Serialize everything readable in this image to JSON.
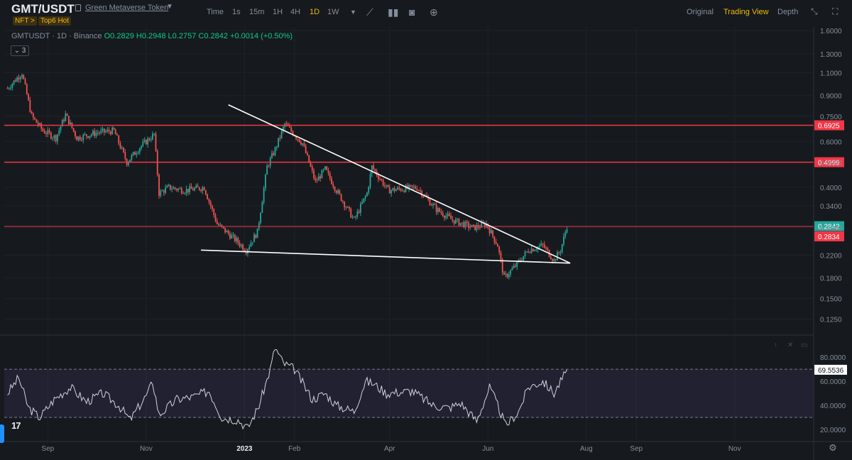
{
  "header": {
    "symbol": "GMT/USDT",
    "token_name": "Green Metaverse Token",
    "tags": [
      "NFT >",
      "Top6 Hot"
    ],
    "intervals": [
      "Time",
      "1s",
      "15m",
      "1H",
      "4H",
      "1D",
      "1W"
    ],
    "active_interval": "1D",
    "views": [
      "Original",
      "Trading View",
      "Depth"
    ],
    "active_view": "Trading View"
  },
  "legend": {
    "pair": "GMTUSDT · 1D · Binance",
    "open": "O0.2829",
    "high": "H0.2948",
    "low": "L0.2757",
    "close": "C0.2842",
    "change": "+0.0014 (+0.50%)",
    "indicator_count": "3"
  },
  "colors": {
    "background": "#161a1e",
    "up": "#26a69a",
    "down": "#ef5350",
    "horizontal_line": "#f23645",
    "trendline": "#ffffff",
    "rsi_band": "#7e57c2",
    "accent": "#f0b90b"
  },
  "chart_data": [
    {
      "type": "candlestick",
      "title": "",
      "y_scale": "log",
      "y_ticks": [
        "1.6000",
        "1.3000",
        "1.1000",
        "0.9000",
        "0.7500",
        "0.6000",
        "0.5000",
        "0.4000",
        "0.3400",
        "0.2800",
        "0.2200",
        "0.1800",
        "0.1500",
        "0.1250"
      ],
      "x_ticks": [
        "Sep",
        "Nov",
        "2023",
        "Feb",
        "Apr",
        "Jun",
        "Aug",
        "Sep",
        "Nov"
      ],
      "x_range": [
        "2022-08-05",
        "2023-12-20"
      ],
      "ylim": [
        0.11,
        1.65
      ],
      "close_path": [
        [
          "2022-08-07",
          0.96
        ],
        [
          "2022-08-16",
          1.1
        ],
        [
          "2022-08-22",
          0.75
        ],
        [
          "2022-08-29",
          0.66
        ],
        [
          "2022-09-06",
          0.62
        ],
        [
          "2022-09-12",
          0.76
        ],
        [
          "2022-09-19",
          0.62
        ],
        [
          "2022-10-02",
          0.65
        ],
        [
          "2022-10-12",
          0.66
        ],
        [
          "2022-10-20",
          0.5
        ],
        [
          "2022-10-28",
          0.57
        ],
        [
          "2022-11-06",
          0.64
        ],
        [
          "2022-11-09",
          0.38
        ],
        [
          "2022-11-15",
          0.4
        ],
        [
          "2022-11-25",
          0.39
        ],
        [
          "2022-12-07",
          0.4
        ],
        [
          "2022-12-15",
          0.29
        ],
        [
          "2022-12-27",
          0.25
        ],
        [
          "2023-01-02",
          0.23
        ],
        [
          "2023-01-09",
          0.27
        ],
        [
          "2023-01-15",
          0.48
        ],
        [
          "2023-01-20",
          0.56
        ],
        [
          "2023-01-26",
          0.7
        ],
        [
          "2023-02-06",
          0.59
        ],
        [
          "2023-02-14",
          0.42
        ],
        [
          "2023-02-20",
          0.47
        ],
        [
          "2023-02-27",
          0.39
        ],
        [
          "2023-03-10",
          0.3
        ],
        [
          "2023-03-18",
          0.38
        ],
        [
          "2023-03-21",
          0.48
        ],
        [
          "2023-03-31",
          0.39
        ],
        [
          "2023-04-18",
          0.4
        ],
        [
          "2023-04-30",
          0.33
        ],
        [
          "2023-05-10",
          0.3
        ],
        [
          "2023-05-23",
          0.28
        ],
        [
          "2023-05-31",
          0.29
        ],
        [
          "2023-06-07",
          0.24
        ],
        [
          "2023-06-11",
          0.18
        ],
        [
          "2023-06-18",
          0.2
        ],
        [
          "2023-06-26",
          0.23
        ],
        [
          "2023-07-05",
          0.24
        ],
        [
          "2023-07-12",
          0.21
        ],
        [
          "2023-07-16",
          0.23
        ],
        [
          "2023-07-20",
          0.2842
        ]
      ],
      "horizontal_lines": [
        {
          "price": 0.6925,
          "label": "0.6925"
        },
        {
          "price": 0.4999,
          "label": "0.4999"
        },
        {
          "price": 0.2834,
          "label": "0.2834"
        }
      ],
      "last_price": {
        "price": 0.2842,
        "label": "0.2842"
      },
      "trendlines": [
        {
          "from": [
            "2022-12-22",
            0.83
          ],
          "to": [
            "2023-07-22",
            0.205
          ]
        },
        {
          "from": [
            "2022-12-05",
            0.23
          ],
          "to": [
            "2023-07-22",
            0.205
          ]
        }
      ]
    },
    {
      "type": "line",
      "title": "",
      "y_ticks": [
        "80.0000",
        "60.0000",
        "40.0000",
        "20.0000"
      ],
      "ylim": [
        10,
        96
      ],
      "band": [
        30,
        70
      ],
      "last_value": {
        "value": 69.5536,
        "label": "69.5536"
      },
      "x_range": [
        "2022-08-05",
        "2023-12-20"
      ],
      "series": [
        {
          "values_path": [
            [
              "2022-08-07",
              50
            ],
            [
              "2022-08-14",
              63
            ],
            [
              "2022-08-20",
              38
            ],
            [
              "2022-08-27",
              30
            ],
            [
              "2022-09-05",
              45
            ],
            [
              "2022-09-15",
              55
            ],
            [
              "2022-09-25",
              43
            ],
            [
              "2022-10-05",
              50
            ],
            [
              "2022-10-15",
              40
            ],
            [
              "2022-10-22",
              28
            ],
            [
              "2022-11-02",
              50
            ],
            [
              "2022-11-05",
              60
            ],
            [
              "2022-11-09",
              32
            ],
            [
              "2022-11-20",
              45
            ],
            [
              "2022-11-30",
              47
            ],
            [
              "2022-12-10",
              52
            ],
            [
              "2022-12-18",
              30
            ],
            [
              "2022-12-28",
              28
            ],
            [
              "2023-01-03",
              21
            ],
            [
              "2023-01-10",
              40
            ],
            [
              "2023-01-17",
              70
            ],
            [
              "2023-01-20",
              88
            ],
            [
              "2023-01-25",
              75
            ],
            [
              "2023-02-01",
              70
            ],
            [
              "2023-02-12",
              45
            ],
            [
              "2023-02-20",
              50
            ],
            [
              "2023-02-27",
              40
            ],
            [
              "2023-03-10",
              35
            ],
            [
              "2023-03-17",
              60
            ],
            [
              "2023-03-22",
              58
            ],
            [
              "2023-03-30",
              50
            ],
            [
              "2023-04-15",
              52
            ],
            [
              "2023-04-28",
              40
            ],
            [
              "2023-05-08",
              38
            ],
            [
              "2023-05-15",
              42
            ],
            [
              "2023-05-25",
              27
            ],
            [
              "2023-06-02",
              55
            ],
            [
              "2023-06-07",
              40
            ],
            [
              "2023-06-12",
              23
            ],
            [
              "2023-06-20",
              35
            ],
            [
              "2023-06-26",
              55
            ],
            [
              "2023-07-05",
              60
            ],
            [
              "2023-07-12",
              50
            ],
            [
              "2023-07-17",
              62
            ],
            [
              "2023-07-20",
              69.5536
            ]
          ]
        }
      ]
    }
  ]
}
